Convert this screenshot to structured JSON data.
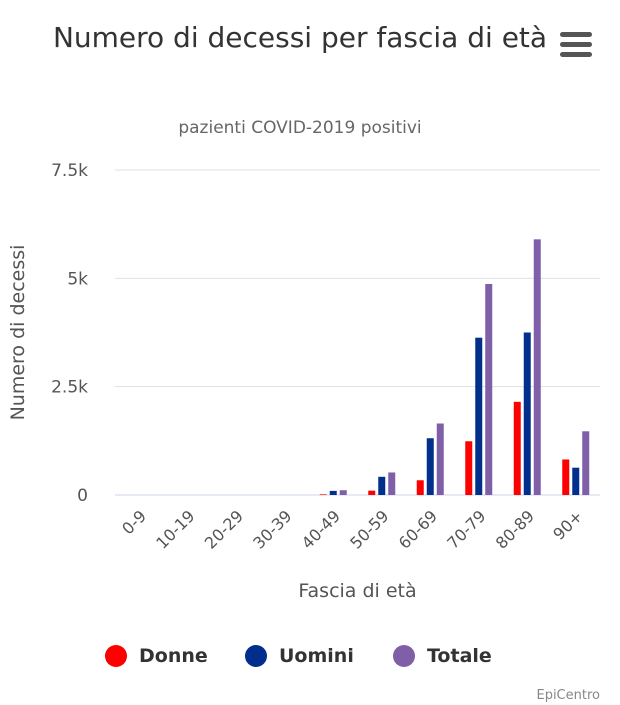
{
  "header": {
    "title": "Numero di decessi per fascia di età",
    "subtitle": "pazienti COVID-2019 positivi",
    "menu_icon": "hamburger-menu-icon"
  },
  "credit": "EpiCentro",
  "colors": {
    "donne": "#ff0000",
    "uomini": "#00308c",
    "totale": "#7f5fa8",
    "grid": "#e0e0e0",
    "axis": "#ccd6eb"
  },
  "chart_data": {
    "type": "bar",
    "title": "Numero di decessi per fascia di età",
    "subtitle": "pazienti COVID-2019 positivi",
    "xlabel": "Fascia di età",
    "ylabel": "Numero di decessi",
    "categories": [
      "0-9",
      "10-19",
      "20-29",
      "30-39",
      "40-49",
      "50-59",
      "60-69",
      "70-79",
      "80-89",
      "90+"
    ],
    "ylim": [
      0,
      7500
    ],
    "yticks": [
      0,
      2500,
      5000,
      7500
    ],
    "ytick_labels": [
      "0",
      "2.5k",
      "5k",
      "7.5k"
    ],
    "grid": true,
    "legend_position": "bottom",
    "series": [
      {
        "name": "Donne",
        "color": "#ff0000",
        "values": [
          0,
          0,
          0,
          0,
          15,
          100,
          340,
          1240,
          2150,
          820
        ]
      },
      {
        "name": "Uomini",
        "color": "#00308c",
        "values": [
          0,
          0,
          0,
          0,
          95,
          420,
          1310,
          3630,
          3750,
          630
        ]
      },
      {
        "name": "Totale",
        "color": "#7f5fa8",
        "values": [
          0,
          0,
          0,
          0,
          110,
          520,
          1650,
          4870,
          5900,
          1470
        ]
      }
    ]
  }
}
